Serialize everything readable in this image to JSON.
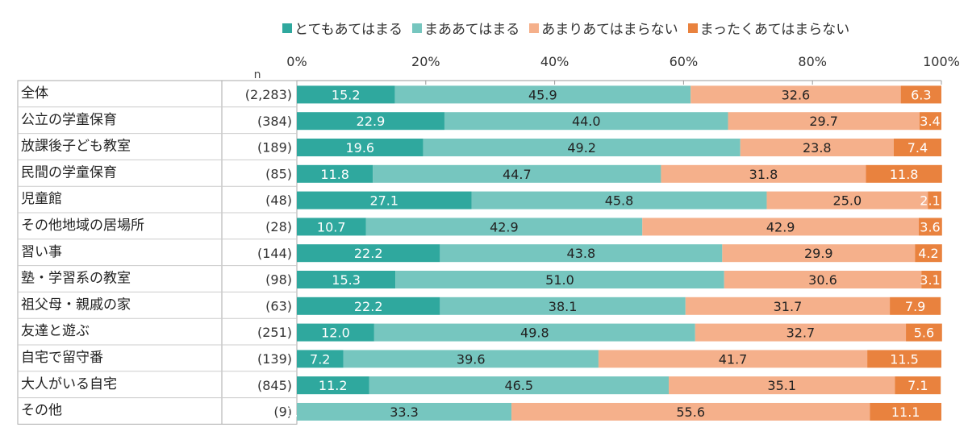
{
  "chart_data": {
    "type": "bar",
    "stacked": true,
    "orientation": "horizontal",
    "n_label": "n",
    "xlim": [
      0,
      100
    ],
    "xticks": [
      "0%",
      "20%",
      "40%",
      "60%",
      "80%",
      "100%"
    ],
    "categories": [
      "全体",
      "公立の学童保育",
      "放課後子ども教室",
      "民間の学童保育",
      "児童館",
      "その他地域の居場所",
      "習い事",
      "塾・学習系の教室",
      "祖父母・親戚の家",
      "友達と遊ぶ",
      "自宅で留守番",
      "大人がいる自宅",
      "その他"
    ],
    "n": [
      "(2,283)",
      "(384)",
      "(189)",
      "(85)",
      "(48)",
      "(28)",
      "(144)",
      "(98)",
      "(63)",
      "(251)",
      "(139)",
      "(845)",
      "(9)"
    ],
    "legend_position": "top",
    "series": [
      {
        "name": "とてもあてはまる",
        "color": "#2FA89E",
        "label_color": "#ffffff",
        "values": [
          15.2,
          22.9,
          19.6,
          11.8,
          27.1,
          10.7,
          22.2,
          15.3,
          22.2,
          12.0,
          7.2,
          11.2,
          0.0
        ]
      },
      {
        "name": "まああてはまる",
        "color": "#76C6BF",
        "label_color": "#222222",
        "values": [
          45.9,
          44.0,
          49.2,
          44.7,
          45.8,
          42.9,
          43.8,
          51.0,
          38.1,
          49.8,
          39.6,
          46.5,
          33.3
        ]
      },
      {
        "name": "あまりあてはまらない",
        "color": "#F5B08B",
        "label_color": "#222222",
        "values": [
          32.6,
          29.7,
          23.8,
          31.8,
          25.0,
          42.9,
          29.9,
          30.6,
          31.7,
          32.7,
          41.7,
          35.1,
          55.6
        ]
      },
      {
        "name": "まったくあてはまらない",
        "color": "#E9823E",
        "label_color": "#ffffff",
        "values": [
          6.3,
          3.4,
          7.4,
          11.8,
          2.1,
          3.6,
          4.2,
          3.1,
          7.9,
          5.6,
          11.5,
          7.1,
          11.1
        ]
      }
    ]
  }
}
